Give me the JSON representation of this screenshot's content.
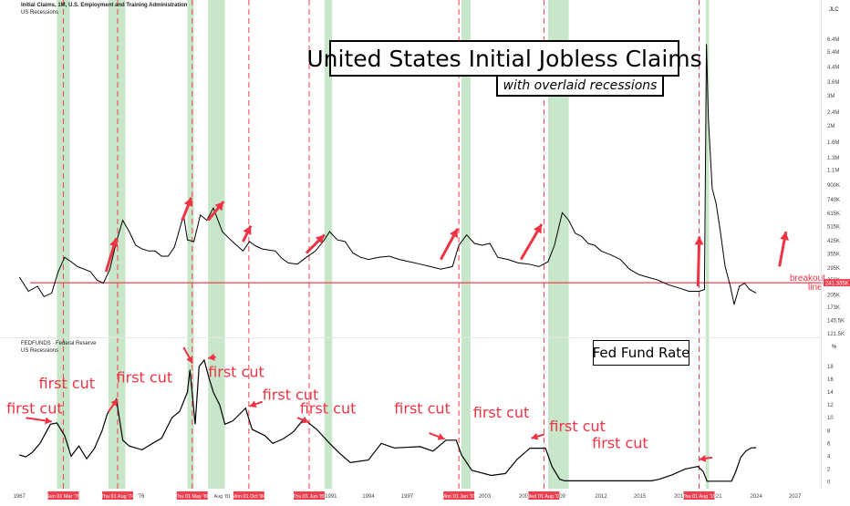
{
  "header": {
    "top_series_label": "Initial Claims, 1M, U.S. Employment and Training Administration",
    "top_overlay_label": "US Recessions",
    "bottom_series_label": "FEDFUNDS · Federal Reserve",
    "bottom_overlay_label": "US Recessions",
    "top_axis_unit": "JLC",
    "bottom_axis_unit": "%"
  },
  "annotations": {
    "title": "United States Initial Jobless Claims",
    "subtitle": "with overlaid recessions",
    "fed_label": "Fed Fund Rate",
    "breakout_label": "breakout",
    "breakout_label2": "line",
    "first_cut": "first cut",
    "breakout_value": "241.335K"
  },
  "colors": {
    "recession_band": "#c8e6c9",
    "cut_line": "#f04050",
    "arrow": "#ee3344",
    "series": "#000000",
    "breakout": "#f04050",
    "axis_text": "#444444"
  },
  "chart_data": [
    {
      "type": "line",
      "title": "",
      "series": [
        {
          "name": "Initial Claims",
          "points": [
            [
              1967.0,
              260
            ],
            [
              1967.7,
              215
            ],
            [
              1968.4,
              230
            ],
            [
              1968.9,
              200
            ],
            [
              1969.5,
              210
            ],
            [
              1970.0,
              280
            ],
            [
              1970.5,
              340
            ],
            [
              1971.0,
              320
            ],
            [
              1971.5,
              300
            ],
            [
              1972.0,
              290
            ],
            [
              1972.5,
              280
            ],
            [
              1973.0,
              250
            ],
            [
              1973.5,
              240
            ],
            [
              1974.0,
              290
            ],
            [
              1974.5,
              420
            ],
            [
              1975.0,
              560
            ],
            [
              1975.5,
              480
            ],
            [
              1976.0,
              400
            ],
            [
              1976.5,
              380
            ],
            [
              1977.0,
              370
            ],
            [
              1977.5,
              370
            ],
            [
              1978.0,
              345
            ],
            [
              1978.5,
              345
            ],
            [
              1979.0,
              390
            ],
            [
              1979.7,
              600
            ],
            [
              1980.0,
              430
            ],
            [
              1980.5,
              420
            ],
            [
              1981.0,
              600
            ],
            [
              1981.5,
              560
            ],
            [
              1982.0,
              660
            ],
            [
              1982.7,
              480
            ],
            [
              1983.2,
              440
            ],
            [
              1983.8,
              400
            ],
            [
              1984.3,
              370
            ],
            [
              1984.8,
              420
            ],
            [
              1985.3,
              395
            ],
            [
              1985.8,
              380
            ],
            [
              1986.3,
              375
            ],
            [
              1986.8,
              370
            ],
            [
              1987.3,
              335
            ],
            [
              1987.8,
              315
            ],
            [
              1988.5,
              310
            ],
            [
              1989.2,
              340
            ],
            [
              1989.9,
              370
            ],
            [
              1990.5,
              420
            ],
            [
              1991.0,
              480
            ],
            [
              1991.6,
              430
            ],
            [
              1992.2,
              420
            ],
            [
              1992.8,
              360
            ],
            [
              1993.4,
              340
            ],
            [
              1994.0,
              330
            ],
            [
              1994.8,
              340
            ],
            [
              1995.6,
              345
            ],
            [
              1996.4,
              330
            ],
            [
              1997.2,
              320
            ],
            [
              1998.0,
              310
            ],
            [
              1998.8,
              300
            ],
            [
              1999.6,
              290
            ],
            [
              2000.5,
              300
            ],
            [
              2001.0,
              400
            ],
            [
              2001.6,
              460
            ],
            [
              2002.2,
              410
            ],
            [
              2002.8,
              400
            ],
            [
              2003.4,
              410
            ],
            [
              2004.0,
              340
            ],
            [
              2004.8,
              330
            ],
            [
              2005.6,
              315
            ],
            [
              2006.4,
              310
            ],
            [
              2007.2,
              300
            ],
            [
              2007.9,
              320
            ],
            [
              2008.4,
              400
            ],
            [
              2009.0,
              620
            ],
            [
              2009.5,
              560
            ],
            [
              2010.0,
              470
            ],
            [
              2010.5,
              450
            ],
            [
              2011.0,
              410
            ],
            [
              2011.5,
              400
            ],
            [
              2012.0,
              370
            ],
            [
              2012.8,
              350
            ],
            [
              2013.5,
              330
            ],
            [
              2014.2,
              290
            ],
            [
              2014.9,
              270
            ],
            [
              2015.6,
              260
            ],
            [
              2016.4,
              250
            ],
            [
              2017.2,
              235
            ],
            [
              2018.0,
              225
            ],
            [
              2018.8,
              215
            ],
            [
              2019.6,
              215
            ],
            [
              2020.0,
              220
            ],
            [
              2020.15,
              6000
            ],
            [
              2020.3,
              2200
            ],
            [
              2020.6,
              860
            ],
            [
              2020.9,
              700
            ],
            [
              2021.2,
              500
            ],
            [
              2021.6,
              300
            ],
            [
              2022.0,
              230
            ],
            [
              2022.3,
              180
            ],
            [
              2022.7,
              230
            ],
            [
              2023.1,
              240
            ],
            [
              2023.5,
              220
            ],
            [
              2024.0,
              210
            ]
          ]
        }
      ],
      "yscale": "log",
      "ylim": [
        121.5,
        8000
      ],
      "xlim": [
        1965.5,
        2029
      ],
      "y_ticks": [
        {
          "value": 6400,
          "label": "6.4M"
        },
        {
          "value": 5400,
          "label": "5.4M"
        },
        {
          "value": 4400,
          "label": "4.4M"
        },
        {
          "value": 3600,
          "label": "3.6M"
        },
        {
          "value": 3000,
          "label": "3M"
        },
        {
          "value": 2400,
          "label": "2.4M"
        },
        {
          "value": 2000,
          "label": "2M"
        },
        {
          "value": 1600,
          "label": "1.6M"
        },
        {
          "value": 1300,
          "label": "1.3M"
        },
        {
          "value": 1100,
          "label": "1.1M"
        },
        {
          "value": 900,
          "label": "900K"
        },
        {
          "value": 740,
          "label": "740K"
        },
        {
          "value": 615,
          "label": "615K"
        },
        {
          "value": 515,
          "label": "515K"
        },
        {
          "value": 425,
          "label": "425K"
        },
        {
          "value": 355,
          "label": "355K"
        },
        {
          "value": 295,
          "label": "295K"
        },
        {
          "value": 250,
          "label": "250K"
        },
        {
          "value": 205,
          "label": "205K"
        },
        {
          "value": 173,
          "label": "173K"
        },
        {
          "value": 145.5,
          "label": "145.5K"
        },
        {
          "value": 121.5,
          "label": "121.5K"
        }
      ],
      "breakout_level": 241.335
    },
    {
      "type": "line",
      "title": "",
      "series": [
        {
          "name": "FEDFUNDS",
          "points": [
            [
              1967.0,
              4.2
            ],
            [
              1967.5,
              3.9
            ],
            [
              1968.0,
              4.6
            ],
            [
              1968.6,
              6.0
            ],
            [
              1969.4,
              9.0
            ],
            [
              1969.9,
              9.2
            ],
            [
              1970.5,
              7.2
            ],
            [
              1971.0,
              4.0
            ],
            [
              1971.6,
              5.6
            ],
            [
              1972.2,
              3.6
            ],
            [
              1972.8,
              5.2
            ],
            [
              1973.4,
              8.0
            ],
            [
              1973.8,
              10.6
            ],
            [
              1974.5,
              12.9
            ],
            [
              1975.0,
              6.5
            ],
            [
              1975.5,
              5.6
            ],
            [
              1976.5,
              5.0
            ],
            [
              1977.3,
              6.0
            ],
            [
              1978.0,
              6.8
            ],
            [
              1978.8,
              10.0
            ],
            [
              1979.4,
              11.0
            ],
            [
              1980.0,
              14.0
            ],
            [
              1980.2,
              17.5
            ],
            [
              1980.6,
              9.0
            ],
            [
              1980.9,
              18.0
            ],
            [
              1981.3,
              19.0
            ],
            [
              1981.7,
              16.0
            ],
            [
              1982.0,
              14.0
            ],
            [
              1982.5,
              12.0
            ],
            [
              1982.9,
              9.0
            ],
            [
              1983.5,
              9.5
            ],
            [
              1984.5,
              11.5
            ],
            [
              1985.0,
              8.2
            ],
            [
              1986.0,
              7.2
            ],
            [
              1986.6,
              6.0
            ],
            [
              1987.4,
              6.7
            ],
            [
              1988.2,
              7.8
            ],
            [
              1989.0,
              9.8
            ],
            [
              1989.5,
              9.0
            ],
            [
              1990.0,
              8.2
            ],
            [
              1991.0,
              6.0
            ],
            [
              1991.8,
              4.4
            ],
            [
              1992.6,
              3.0
            ],
            [
              1994.0,
              3.4
            ],
            [
              1995.0,
              6.0
            ],
            [
              1996.0,
              5.3
            ],
            [
              1998.0,
              5.5
            ],
            [
              1999.0,
              4.8
            ],
            [
              2000.0,
              6.5
            ],
            [
              2000.8,
              6.5
            ],
            [
              2001.2,
              4.2
            ],
            [
              2002.0,
              1.8
            ],
            [
              2003.5,
              1.0
            ],
            [
              2004.6,
              1.3
            ],
            [
              2005.5,
              3.5
            ],
            [
              2006.5,
              5.25
            ],
            [
              2007.7,
              5.25
            ],
            [
              2008.2,
              2.4
            ],
            [
              2008.8,
              0.4
            ],
            [
              2009.2,
              0.15
            ],
            [
              2015.9,
              0.15
            ],
            [
              2016.5,
              0.4
            ],
            [
              2017.5,
              1.1
            ],
            [
              2018.5,
              2.0
            ],
            [
              2019.5,
              2.4
            ],
            [
              2019.9,
              1.6
            ],
            [
              2020.2,
              0.1
            ],
            [
              2022.1,
              0.1
            ],
            [
              2022.4,
              1.5
            ],
            [
              2022.8,
              3.8
            ],
            [
              2023.2,
              4.8
            ],
            [
              2023.6,
              5.3
            ],
            [
              2024.0,
              5.33
            ]
          ]
        }
      ],
      "yscale": "linear",
      "ylim": [
        -0.5,
        20
      ],
      "xlim": [
        1965.5,
        2029
      ],
      "y_ticks": [
        {
          "value": 18,
          "label": "18"
        },
        {
          "value": 16,
          "label": "16"
        },
        {
          "value": 14,
          "label": "14"
        },
        {
          "value": 12,
          "label": "12"
        },
        {
          "value": 10,
          "label": "10"
        },
        {
          "value": 8,
          "label": "8"
        },
        {
          "value": 6,
          "label": "6"
        },
        {
          "value": 4,
          "label": "4"
        },
        {
          "value": 2,
          "label": "2"
        },
        {
          "value": 0,
          "label": "0"
        }
      ]
    }
  ],
  "x_axis": {
    "year_ticks": [
      {
        "year": 1967,
        "label": "1967"
      },
      {
        "year": 1976.4,
        "label": "'76"
      },
      {
        "year": 1979.3,
        "label": "19"
      },
      {
        "year": 1989.6,
        "label": "19"
      },
      {
        "year": 1991.1,
        "label": "1991"
      },
      {
        "year": 1994,
        "label": "1994"
      },
      {
        "year": 1997,
        "label": "1997"
      },
      {
        "year": 2003,
        "label": "2003"
      },
      {
        "year": 2006,
        "label": "200"
      },
      {
        "year": 2009,
        "label": "09"
      },
      {
        "year": 2012,
        "label": "2012"
      },
      {
        "year": 2015,
        "label": "2015"
      },
      {
        "year": 2018,
        "label": "201"
      },
      {
        "year": 2021,
        "label": "021"
      },
      {
        "year": 2024,
        "label": "2024"
      },
      {
        "year": 2027,
        "label": "2027"
      }
    ],
    "cut_labels": [
      {
        "year": 1970.4,
        "label": "Sun 01 Mar '70"
      },
      {
        "year": 1974.6,
        "label": "Thu 01 Aug '74"
      },
      {
        "year": 1980.37,
        "label": "Thu 01 May '80"
      },
      {
        "year": 1984.75,
        "label": "Mon 01 Oct '84"
      },
      {
        "year": 1989.42,
        "label": "Thu 01 Jun '89"
      },
      {
        "year": 2001.0,
        "label": "Mon 01 Jan '01"
      },
      {
        "year": 2007.58,
        "label": "Wed 01 Aug '07"
      },
      {
        "year": 2019.58,
        "label": "Thu 01 Aug '19"
      }
    ],
    "extra_labels": [
      {
        "year": 1982.7,
        "label": "Aug '81"
      }
    ]
  },
  "recessions": [
    [
      1969.9,
      1970.9
    ],
    [
      1973.9,
      1975.2
    ],
    [
      1980.0,
      1980.5
    ],
    [
      1981.6,
      1982.9
    ],
    [
      1990.6,
      1991.2
    ],
    [
      2001.2,
      2001.9
    ],
    [
      2007.9,
      2009.5
    ],
    [
      2020.1,
      2020.35
    ]
  ]
}
